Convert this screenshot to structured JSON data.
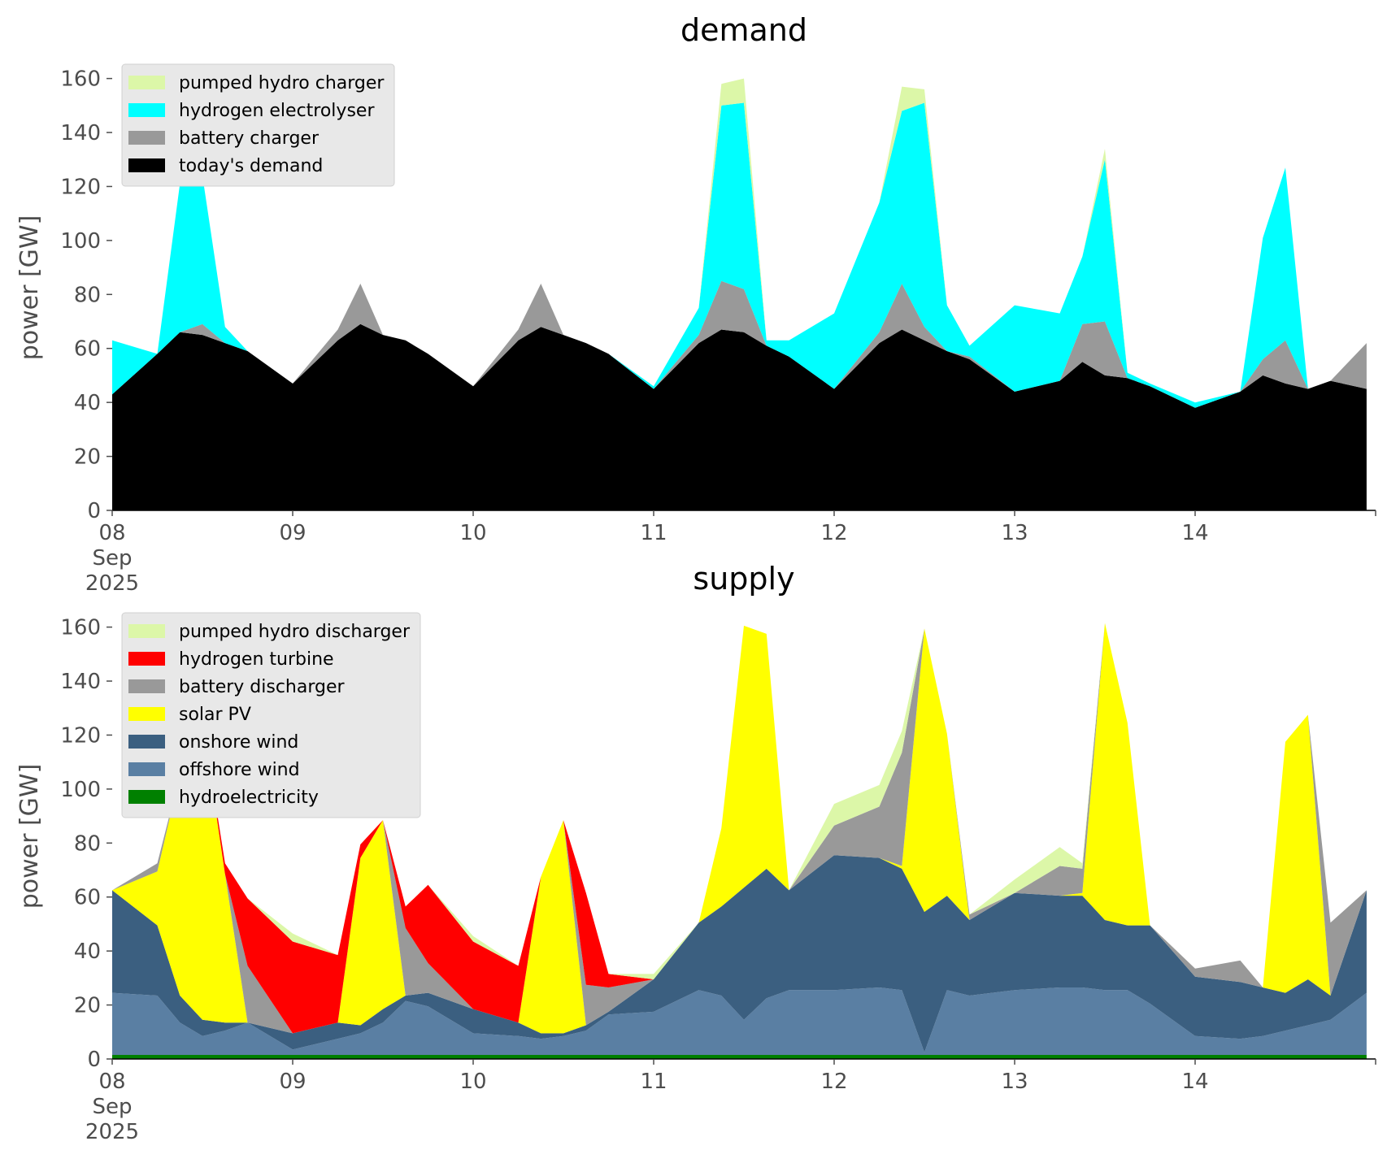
{
  "chart_data": [
    {
      "type": "area",
      "stacked": true,
      "title": "demand",
      "ylabel": "power [GW]",
      "ylim": [
        0,
        165
      ],
      "yticks": [
        0,
        20,
        40,
        60,
        80,
        100,
        120,
        140,
        160
      ],
      "xlim": [
        0,
        7
      ],
      "xunit": "days since 08 Sep 2025",
      "xticks": [
        {
          "x": 0,
          "lines": [
            "08",
            "Sep",
            "2025"
          ]
        },
        {
          "x": 1,
          "lines": [
            "09"
          ]
        },
        {
          "x": 2,
          "lines": [
            "10"
          ]
        },
        {
          "x": 3,
          "lines": [
            "11"
          ]
        },
        {
          "x": 4,
          "lines": [
            "12"
          ]
        },
        {
          "x": 5,
          "lines": [
            "13"
          ]
        },
        {
          "x": 6,
          "lines": [
            "14"
          ]
        }
      ],
      "grid": false,
      "legend_position": "top-left",
      "legend_order": [
        "pumped hydro charger",
        "hydrogen electrolyser",
        "battery charger",
        "today's demand"
      ],
      "x": [
        0,
        0.25,
        0.375,
        0.5,
        0.625,
        0.75,
        1,
        1.25,
        1.375,
        1.5,
        1.625,
        1.75,
        2,
        2.25,
        2.375,
        2.5,
        2.625,
        2.75,
        3,
        3.25,
        3.375,
        3.5,
        3.625,
        3.75,
        4,
        4.25,
        4.375,
        4.5,
        4.625,
        4.75,
        5,
        5.25,
        5.375,
        5.5,
        5.625,
        5.75,
        6,
        6.25,
        6.375,
        6.5,
        6.625,
        6.75,
        6.95
      ],
      "series": [
        {
          "name": "today's demand",
          "color": "#000000",
          "values": [
            43,
            58,
            66,
            65,
            62,
            59,
            47,
            63,
            69,
            65,
            63,
            58,
            46,
            63,
            68,
            65,
            62,
            58,
            45,
            62,
            67,
            66,
            61,
            57,
            45,
            62,
            67,
            63,
            59,
            56,
            44,
            48,
            55,
            50,
            49,
            46,
            38,
            44,
            50,
            47,
            45,
            48,
            45
          ]
        },
        {
          "name": "battery charger",
          "color": "#999999",
          "values": [
            0,
            0,
            0,
            4,
            0,
            0,
            0,
            4,
            15,
            0,
            0,
            0,
            0,
            4,
            16,
            0,
            0,
            0,
            0,
            3,
            18,
            16,
            0,
            0,
            0,
            4,
            17,
            5,
            0,
            1,
            0,
            0,
            14,
            20,
            0,
            0,
            0,
            0,
            6,
            16,
            0,
            0,
            17
          ]
        },
        {
          "name": "hydrogen electrolyser",
          "color": "#00ffff",
          "values": [
            20,
            0,
            55,
            55,
            6,
            0,
            0,
            0,
            0,
            0,
            0,
            0,
            0,
            0,
            0,
            0,
            0,
            0,
            1,
            10,
            65,
            69,
            2,
            6,
            28,
            48,
            64,
            83,
            17,
            4,
            32,
            25,
            25,
            60,
            2,
            1,
            2,
            0,
            45,
            64,
            0,
            0,
            0
          ]
        },
        {
          "name": "pumped hydro charger",
          "color": "#dcf7a8",
          "values": [
            0,
            0,
            0,
            0,
            0,
            0,
            0,
            0,
            0,
            0,
            0,
            0,
            0,
            0,
            0,
            0,
            0,
            0,
            0,
            0,
            8,
            9,
            0,
            0,
            0,
            0,
            9,
            5,
            0,
            0,
            0,
            0,
            0,
            4,
            0,
            0,
            0,
            0,
            0,
            0,
            0,
            0,
            0
          ]
        }
      ]
    },
    {
      "type": "area",
      "stacked": true,
      "title": "supply",
      "ylabel": "power [GW]",
      "ylim": [
        0,
        165
      ],
      "yticks": [
        0,
        20,
        40,
        60,
        80,
        100,
        120,
        140,
        160
      ],
      "xlim": [
        0,
        7
      ],
      "xunit": "days since 08 Sep 2025",
      "xticks": [
        {
          "x": 0,
          "lines": [
            "08",
            "Sep",
            "2025"
          ]
        },
        {
          "x": 1,
          "lines": [
            "09"
          ]
        },
        {
          "x": 2,
          "lines": [
            "10"
          ]
        },
        {
          "x": 3,
          "lines": [
            "11"
          ]
        },
        {
          "x": 4,
          "lines": [
            "12"
          ]
        },
        {
          "x": 5,
          "lines": [
            "13"
          ]
        },
        {
          "x": 6,
          "lines": [
            "14"
          ]
        }
      ],
      "grid": false,
      "legend_position": "top-left",
      "legend_order": [
        "pumped hydro discharger",
        "hydrogen turbine",
        "battery discharger",
        "solar PV",
        "onshore wind",
        "offshore wind",
        "hydroelectricity"
      ],
      "x": [
        0,
        0.25,
        0.375,
        0.5,
        0.625,
        0.75,
        1,
        1.25,
        1.375,
        1.5,
        1.625,
        1.75,
        2,
        2.25,
        2.375,
        2.5,
        2.625,
        2.75,
        3,
        3.25,
        3.375,
        3.5,
        3.625,
        3.75,
        4,
        4.25,
        4.375,
        4.5,
        4.625,
        4.75,
        5,
        5.25,
        5.375,
        5.5,
        5.625,
        5.75,
        6,
        6.25,
        6.375,
        6.5,
        6.625,
        6.75,
        6.95
      ],
      "series": [
        {
          "name": "hydroelectricity",
          "color": "#008000",
          "values": [
            1.5,
            1.5,
            1.5,
            1.5,
            1.5,
            1.5,
            1.5,
            1.5,
            1.5,
            1.5,
            1.5,
            1.5,
            1.5,
            1.5,
            1.5,
            1.5,
            1.5,
            1.5,
            1.5,
            1.5,
            1.5,
            1.5,
            1.5,
            1.5,
            1.5,
            1.5,
            1.5,
            1.5,
            1.5,
            1.5,
            1.5,
            1.5,
            1.5,
            1.5,
            1.5,
            1.5,
            1.5,
            1.5,
            1.5,
            1.5,
            1.5,
            1.5,
            1.5
          ]
        },
        {
          "name": "offshore wind",
          "color": "#5a7fa3",
          "values": [
            23,
            22,
            12,
            7,
            9,
            12,
            2,
            6,
            8,
            12,
            20,
            18,
            8,
            7,
            6,
            7,
            9,
            15,
            16,
            24,
            22,
            13,
            21,
            24,
            24,
            25,
            24,
            1,
            24,
            22,
            24,
            25,
            25,
            24,
            24,
            19,
            7,
            6,
            7,
            9,
            11,
            13,
            23
          ]
        },
        {
          "name": "onshore wind",
          "color": "#3b5f80",
          "values": [
            38,
            26,
            10,
            6,
            3,
            0,
            6,
            6,
            3,
            5,
            2,
            5,
            9,
            5,
            2,
            1,
            2,
            1,
            12,
            25,
            33,
            49,
            48,
            37,
            50,
            48,
            45,
            52,
            35,
            28,
            36,
            34,
            34,
            26,
            24,
            29,
            22,
            21,
            18,
            14,
            17,
            9,
            38
          ]
        },
        {
          "name": "solar PV",
          "color": "#ffff00",
          "values": [
            0,
            20,
            82,
            111,
            55,
            0,
            0,
            0,
            62,
            70,
            0,
            0,
            0,
            0,
            58,
            79,
            0,
            0,
            0,
            0,
            29,
            97,
            87,
            0,
            0,
            0,
            1,
            105,
            60,
            0,
            0,
            0,
            1,
            110,
            75,
            0,
            0,
            0,
            0,
            93,
            98,
            0,
            0
          ]
        },
        {
          "name": "battery discharger",
          "color": "#999999",
          "values": [
            0,
            3,
            0,
            0,
            0,
            21,
            0,
            0,
            0,
            0,
            25,
            11,
            0,
            0,
            0,
            0,
            15,
            9,
            0,
            0,
            0,
            0,
            0,
            0,
            11,
            19,
            42,
            0,
            0,
            2,
            0,
            11,
            9,
            0,
            0,
            0,
            3,
            8,
            0,
            0,
            0,
            27,
            0
          ]
        },
        {
          "name": "hydrogen turbine",
          "color": "#ff0000",
          "values": [
            0,
            0,
            0,
            0,
            4,
            25,
            34,
            25,
            5,
            0,
            8,
            29,
            25,
            21,
            0,
            0,
            34,
            5,
            0,
            0,
            0,
            0,
            0,
            0,
            0,
            0,
            0,
            0,
            0,
            0,
            0,
            0,
            0,
            0,
            0,
            0,
            0,
            0,
            0,
            0,
            0,
            0,
            0
          ]
        },
        {
          "name": "pumped hydro discharger",
          "color": "#dcf7a8",
          "values": [
            0,
            0,
            0,
            0,
            0,
            0,
            3,
            0,
            0,
            0,
            0,
            0,
            2,
            0,
            0,
            0,
            0,
            0,
            2,
            0,
            0,
            0,
            0,
            0,
            8,
            8,
            8,
            0,
            0,
            0,
            5,
            7,
            2,
            0,
            0,
            0,
            0,
            0,
            0,
            0,
            0,
            0,
            0
          ]
        }
      ]
    }
  ]
}
